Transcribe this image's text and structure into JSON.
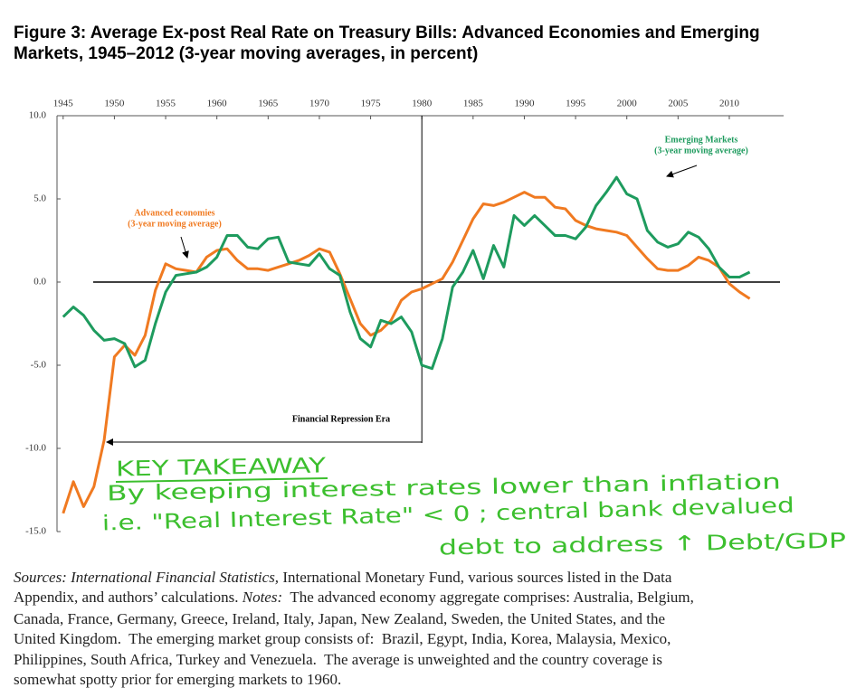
{
  "chart_data": {
    "type": "line",
    "title": [
      "Figure 3: Average Ex-post Real Rate on Treasury Bills: Advanced Economies and Emerging",
      "Markets, 1945–2012 (3-year moving averages, in percent)"
    ],
    "x": [
      1945,
      1946,
      1947,
      1948,
      1949,
      1950,
      1951,
      1952,
      1953,
      1954,
      1955,
      1956,
      1957,
      1958,
      1959,
      1960,
      1961,
      1962,
      1963,
      1964,
      1965,
      1966,
      1967,
      1968,
      1969,
      1970,
      1971,
      1972,
      1973,
      1974,
      1975,
      1976,
      1977,
      1978,
      1979,
      1980,
      1981,
      1982,
      1983,
      1984,
      1985,
      1986,
      1987,
      1988,
      1989,
      1990,
      1991,
      1992,
      1993,
      1994,
      1995,
      1996,
      1997,
      1998,
      1999,
      2000,
      2001,
      2002,
      2003,
      2004,
      2005,
      2006,
      2007,
      2008,
      2009,
      2010,
      2011,
      2012
    ],
    "series": [
      {
        "name": [
          "Advanced economies",
          "(3-year moving average)"
        ],
        "color": "#f07a21",
        "values": [
          -13.9,
          -12,
          -13.5,
          -12.3,
          -9.5,
          -4.5,
          -3.8,
          -4.4,
          -3.2,
          -0.5,
          1.1,
          0.8,
          0.7,
          0.6,
          1.5,
          1.9,
          2.0,
          1.3,
          0.8,
          0.8,
          0.7,
          0.9,
          1.1,
          1.3,
          1.6,
          2.0,
          1.8,
          0.5,
          -1.0,
          -2.5,
          -3.2,
          -2.9,
          -2.3,
          -1.1,
          -0.6,
          -0.4,
          -0.1,
          0.2,
          1.2,
          2.5,
          3.8,
          4.7,
          4.6,
          4.8,
          5.1,
          5.4,
          5.1,
          5.1,
          4.5,
          4.4,
          3.7,
          3.4,
          3.2,
          3.1,
          3.0,
          2.8,
          2.1,
          1.4,
          0.8,
          0.7,
          0.7,
          1.0,
          1.5,
          1.3,
          0.9,
          -0.1,
          -0.6,
          -1.0
        ]
      },
      {
        "name": [
          "Emerging Markets",
          "(3-year moving average)"
        ],
        "color": "#1e9b5e",
        "values": [
          -2.1,
          -1.5,
          -2.0,
          -2.9,
          -3.5,
          -3.4,
          -3.7,
          -5.1,
          -4.7,
          -2.5,
          -0.6,
          0.4,
          0.5,
          0.6,
          0.9,
          1.5,
          2.8,
          2.8,
          2.1,
          2.0,
          2.6,
          2.7,
          1.2,
          1.1,
          1.0,
          1.7,
          0.8,
          0.4,
          -1.8,
          -3.4,
          -3.9,
          -2.3,
          -2.5,
          -2.1,
          -3.0,
          -5.0,
          -5.2,
          -3.4,
          -0.3,
          0.6,
          1.9,
          0.2,
          2.2,
          0.9,
          4.0,
          3.4,
          4.0,
          3.4,
          2.8,
          2.8,
          2.6,
          3.3,
          4.6,
          5.4,
          6.3,
          5.3,
          5.0,
          3.1,
          2.4,
          2.1,
          2.3,
          3.0,
          2.7,
          2.0,
          0.9,
          0.3,
          0.3,
          0.6
        ]
      }
    ],
    "xlim": [
      1944.4,
      2015.3
    ],
    "xticks": [
      1945,
      1950,
      1955,
      1960,
      1965,
      1970,
      1975,
      1980,
      1985,
      1990,
      1995,
      2000,
      2005,
      2010
    ],
    "ylim": [
      -15,
      10
    ],
    "yticks": [
      {
        "value": 10,
        "label": "10.0"
      },
      {
        "value": 5,
        "label": "5.0"
      },
      {
        "value": 0,
        "label": "0.0"
      },
      {
        "value": -5,
        "label": "-5.0"
      },
      {
        "value": -10,
        "label": "-10.0"
      },
      {
        "value": -15,
        "label": "-15.0"
      }
    ],
    "era_label": "Financial Repression Era",
    "handwritten": [
      "KEY TAKEAWAY",
      "By keeping interest rates lower than inflation",
      "i.e. \"Real Interest Rate\" < 0 ; central bank devalued",
      "debt to address ↑ Debt/GDP"
    ]
  },
  "notes": [
    [
      {
        "text": "Sources: International Financial Statistics,",
        "italic": true
      },
      {
        "text": " International Monetary Fund, various sources listed in the Data"
      }
    ],
    [
      {
        "text": "Appendix, and authors’ calculations. "
      },
      {
        "text": "Notes:",
        "italic": true
      },
      {
        "text": "  The advanced economy aggregate comprises: Australia, Belgium,"
      }
    ],
    [
      {
        "text": "Canada, France, Germany, Greece, Ireland, Italy, Japan, New Zealand, Sweden, the United States, and the"
      }
    ],
    [
      {
        "text": "United Kingdom.  The emerging market group consists of:  Brazil, Egypt, India, Korea, Malaysia, Mexico,"
      }
    ],
    [
      {
        "text": "Philippines, South Africa, Turkey and Venezuela.  The average is unweighted and the country coverage is"
      }
    ],
    [
      {
        "text": "somewhat spotty prior for emerging markets to 1960."
      }
    ]
  ]
}
